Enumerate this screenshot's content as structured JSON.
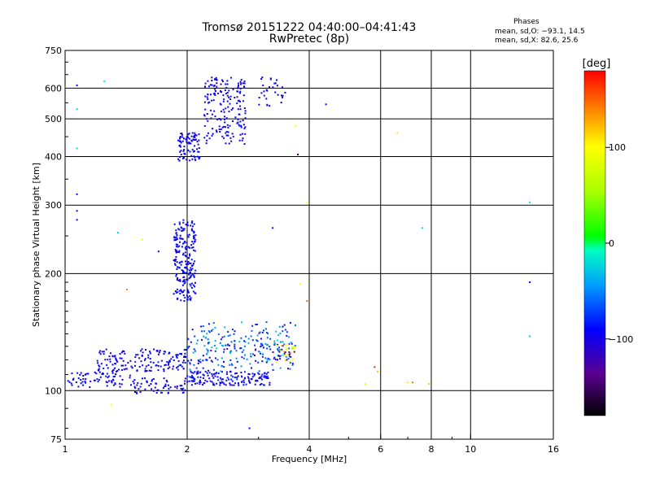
{
  "header": {
    "title": "Tromsø 20151222 04:40:00–04:41:43",
    "subtitle": "RwPretec (8p)"
  },
  "phases_box": {
    "title": "Phases",
    "line_o": "mean, sd,O: −93.1, 14.5",
    "line_x": "mean, sd,X:  82.6, 25.6"
  },
  "chart_data": {
    "type": "scatter",
    "xlabel": "Frequency [MHz]",
    "ylabel": "Stationary phase Virtual Height [km]",
    "x_scale": "log",
    "y_scale": "log",
    "xlim": [
      1,
      16
    ],
    "ylim": [
      75,
      750
    ],
    "x_ticks": [
      {
        "value": 1,
        "label": "1"
      },
      {
        "value": 2,
        "label": "2"
      },
      {
        "value": 4,
        "label": "4"
      },
      {
        "value": 6,
        "label": "6"
      },
      {
        "value": 8,
        "label": "8"
      },
      {
        "value": 10,
        "label": "10"
      },
      {
        "value": 16,
        "label": "16"
      }
    ],
    "x_minor": [
      3,
      5,
      7,
      9
    ],
    "y_ticks": [
      {
        "value": 75,
        "label": "75"
      },
      {
        "value": 100,
        "label": "100"
      },
      {
        "value": 200,
        "label": "200"
      },
      {
        "value": 300,
        "label": "300"
      },
      {
        "value": 400,
        "label": "400"
      },
      {
        "value": 500,
        "label": "500"
      },
      {
        "value": 600,
        "label": "600"
      },
      {
        "value": 750,
        "label": "750"
      }
    ],
    "grid": true,
    "colorbar": {
      "label": "[deg]",
      "range": [
        -180,
        180
      ],
      "ticks": [
        {
          "value": 100,
          "label": "100"
        },
        {
          "value": 0,
          "label": "0"
        },
        {
          "value": -100,
          "label": "−100"
        }
      ]
    },
    "clusters": [
      {
        "x": [
          1.0,
          1.5
        ],
        "y": [
          102,
          112
        ],
        "n": 70,
        "phase": -95,
        "sd": 6
      },
      {
        "x": [
          1.2,
          2.0
        ],
        "y": [
          112,
          128
        ],
        "n": 160,
        "phase": -95,
        "sd": 8
      },
      {
        "x": [
          1.45,
          2.0
        ],
        "y": [
          98,
          108
        ],
        "n": 60,
        "phase": -95,
        "sd": 6
      },
      {
        "x": [
          1.85,
          2.1
        ],
        "y": [
          170,
          275
        ],
        "n": 220,
        "phase": -92,
        "sd": 6
      },
      {
        "x": [
          1.9,
          2.15
        ],
        "y": [
          390,
          460
        ],
        "n": 90,
        "phase": -95,
        "sd": 6
      },
      {
        "x": [
          2.2,
          2.8
        ],
        "y": [
          430,
          640
        ],
        "n": 180,
        "phase": -95,
        "sd": 8
      },
      {
        "x": [
          2.0,
          3.2
        ],
        "y": [
          103,
          112
        ],
        "n": 160,
        "phase": -93,
        "sd": 10
      },
      {
        "x": [
          2.0,
          3.7
        ],
        "y": [
          112,
          150
        ],
        "n": 200,
        "phase": -70,
        "sd": 25
      },
      {
        "x": [
          2.2,
          3.5
        ],
        "y": [
          120,
          135
        ],
        "n": 40,
        "phase": -60,
        "sd": 20
      },
      {
        "x": [
          3.0,
          3.5
        ],
        "y": [
          540,
          640
        ],
        "n": 30,
        "phase": -95,
        "sd": 6
      },
      {
        "x": [
          3.3,
          3.7
        ],
        "y": [
          118,
          132
        ],
        "n": 20,
        "phase": 90,
        "sd": 20
      },
      {
        "x": [
          3.2,
          3.7
        ],
        "y": [
          120,
          128
        ],
        "n": 15,
        "phase": -130,
        "sd": 10
      }
    ],
    "isolated_points": [
      {
        "x": 1.07,
        "y": 610,
        "phase": -95
      },
      {
        "x": 1.07,
        "y": 530,
        "phase": -20
      },
      {
        "x": 1.07,
        "y": 420,
        "phase": -20
      },
      {
        "x": 1.07,
        "y": 320,
        "phase": -95
      },
      {
        "x": 1.07,
        "y": 290,
        "phase": -95
      },
      {
        "x": 1.07,
        "y": 275,
        "phase": -95
      },
      {
        "x": 1.25,
        "y": 625,
        "phase": -20
      },
      {
        "x": 1.35,
        "y": 255,
        "phase": -20
      },
      {
        "x": 1.42,
        "y": 182,
        "phase": 140
      },
      {
        "x": 1.55,
        "y": 245,
        "phase": 100
      },
      {
        "x": 1.7,
        "y": 228,
        "phase": -95
      },
      {
        "x": 1.3,
        "y": 92,
        "phase": 100
      },
      {
        "x": 2.85,
        "y": 80,
        "phase": -95
      },
      {
        "x": 3.7,
        "y": 480,
        "phase": 100
      },
      {
        "x": 3.75,
        "y": 405,
        "phase": -150
      },
      {
        "x": 3.95,
        "y": 305,
        "phase": 100
      },
      {
        "x": 3.25,
        "y": 262,
        "phase": -95
      },
      {
        "x": 3.8,
        "y": 188,
        "phase": 100
      },
      {
        "x": 3.95,
        "y": 170,
        "phase": 150
      },
      {
        "x": 4.4,
        "y": 545,
        "phase": -95
      },
      {
        "x": 5.5,
        "y": 104,
        "phase": 100
      },
      {
        "x": 5.8,
        "y": 115,
        "phase": 170
      },
      {
        "x": 5.9,
        "y": 112,
        "phase": 120
      },
      {
        "x": 6.6,
        "y": 460,
        "phase": 110
      },
      {
        "x": 7.0,
        "y": 105,
        "phase": 110
      },
      {
        "x": 7.2,
        "y": 105,
        "phase": 150
      },
      {
        "x": 7.6,
        "y": 262,
        "phase": -20
      },
      {
        "x": 7.9,
        "y": 104,
        "phase": 40
      },
      {
        "x": 14.0,
        "y": 305,
        "phase": -20
      },
      {
        "x": 14.0,
        "y": 190,
        "phase": -95
      },
      {
        "x": 14.0,
        "y": 138,
        "phase": -30
      }
    ]
  }
}
